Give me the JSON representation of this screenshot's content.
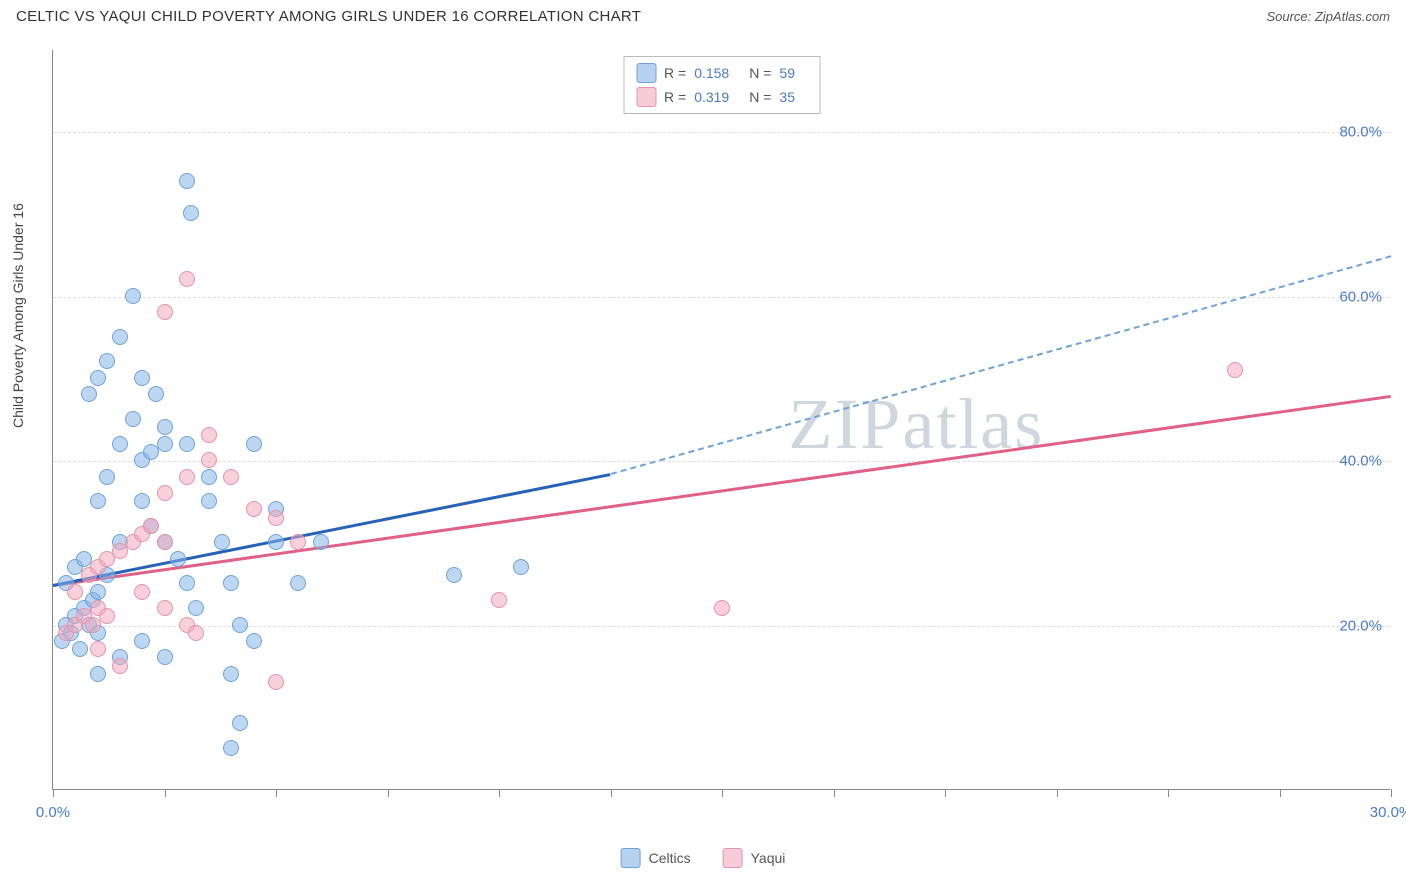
{
  "title": "CELTIC VS YAQUI CHILD POVERTY AMONG GIRLS UNDER 16 CORRELATION CHART",
  "source_label": "Source: ZipAtlas.com",
  "y_axis_title": "Child Poverty Among Girls Under 16",
  "watermark": "ZIPatlas",
  "chart": {
    "type": "scatter",
    "xlim": [
      0,
      30
    ],
    "ylim": [
      0,
      90
    ],
    "x_ticks": [
      0,
      2.5,
      5,
      7.5,
      10,
      12.5,
      15,
      17.5,
      20,
      22.5,
      25,
      27.5,
      30
    ],
    "x_tick_labels": {
      "0": "0.0%",
      "30": "30.0%"
    },
    "y_gridlines": [
      20,
      40,
      60,
      80
    ],
    "y_tick_labels": {
      "20": "20.0%",
      "40": "40.0%",
      "60": "60.0%",
      "80": "80.0%"
    },
    "background_color": "#ffffff",
    "grid_color": "#dddddd",
    "axis_color": "#888888",
    "tick_label_color": "#4a7bc8",
    "title_color": "#333333",
    "point_radius": 8,
    "series": [
      {
        "name": "Celtics",
        "color_fill": "rgba(135,180,230,0.55)",
        "color_stroke": "#6fa3d9",
        "R": 0.158,
        "N": 59,
        "trend": {
          "x1": 0,
          "y1": 25,
          "x2_solid": 12.5,
          "y2_solid": 38.5,
          "x2_dash": 30,
          "y2_dash": 65
        },
        "trend_color_solid": "#2862b8",
        "trend_color_dash": "#6fa3d9",
        "points": [
          [
            0.2,
            18
          ],
          [
            0.3,
            20
          ],
          [
            0.4,
            19
          ],
          [
            0.5,
            21
          ],
          [
            0.6,
            17
          ],
          [
            0.7,
            22
          ],
          [
            0.8,
            20
          ],
          [
            0.9,
            23
          ],
          [
            1.0,
            19
          ],
          [
            0.3,
            25
          ],
          [
            0.5,
            27
          ],
          [
            0.7,
            28
          ],
          [
            1.0,
            24
          ],
          [
            1.2,
            26
          ],
          [
            1.5,
            30
          ],
          [
            1.0,
            35
          ],
          [
            1.2,
            38
          ],
          [
            1.5,
            42
          ],
          [
            1.8,
            45
          ],
          [
            2.0,
            40
          ],
          [
            0.8,
            48
          ],
          [
            1.0,
            50
          ],
          [
            1.2,
            52
          ],
          [
            2.2,
            41
          ],
          [
            2.5,
            42
          ],
          [
            1.5,
            55
          ],
          [
            1.8,
            60
          ],
          [
            2.0,
            35
          ],
          [
            2.2,
            32
          ],
          [
            2.5,
            30
          ],
          [
            2.8,
            28
          ],
          [
            3.0,
            25
          ],
          [
            3.2,
            22
          ],
          [
            2.0,
            50
          ],
          [
            2.3,
            48
          ],
          [
            2.5,
            44
          ],
          [
            3.0,
            42
          ],
          [
            3.5,
            38
          ],
          [
            3.0,
            74
          ],
          [
            3.1,
            70
          ],
          [
            3.5,
            35
          ],
          [
            3.8,
            30
          ],
          [
            4.0,
            25
          ],
          [
            4.2,
            20
          ],
          [
            4.5,
            18
          ],
          [
            4.0,
            14
          ],
          [
            4.5,
            42
          ],
          [
            5.0,
            30
          ],
          [
            5.5,
            25
          ],
          [
            4.0,
            5
          ],
          [
            4.2,
            8
          ],
          [
            5.0,
            34
          ],
          [
            6.0,
            30
          ],
          [
            9.0,
            26
          ],
          [
            10.5,
            27
          ],
          [
            1.0,
            14
          ],
          [
            1.5,
            16
          ],
          [
            2.0,
            18
          ],
          [
            2.5,
            16
          ]
        ]
      },
      {
        "name": "Yaqui",
        "color_fill": "rgba(240,170,190,0.55)",
        "color_stroke": "#e593ad",
        "R": 0.319,
        "N": 35,
        "trend": {
          "x1": 0,
          "y1": 25,
          "x2_solid": 30,
          "y2_solid": 48
        },
        "trend_color_solid": "#e06088",
        "points": [
          [
            0.3,
            19
          ],
          [
            0.5,
            20
          ],
          [
            0.7,
            21
          ],
          [
            0.9,
            20
          ],
          [
            1.0,
            22
          ],
          [
            1.2,
            21
          ],
          [
            0.5,
            24
          ],
          [
            0.8,
            26
          ],
          [
            1.0,
            27
          ],
          [
            1.2,
            28
          ],
          [
            1.5,
            29
          ],
          [
            1.8,
            30
          ],
          [
            2.0,
            31
          ],
          [
            2.2,
            32
          ],
          [
            2.5,
            30
          ],
          [
            2.0,
            24
          ],
          [
            2.5,
            22
          ],
          [
            3.0,
            20
          ],
          [
            3.2,
            19
          ],
          [
            2.5,
            36
          ],
          [
            3.0,
            38
          ],
          [
            3.5,
            40
          ],
          [
            4.0,
            38
          ],
          [
            4.5,
            34
          ],
          [
            5.0,
            33
          ],
          [
            5.5,
            30
          ],
          [
            5.0,
            13
          ],
          [
            3.0,
            62
          ],
          [
            2.5,
            58
          ],
          [
            3.5,
            43
          ],
          [
            10.0,
            23
          ],
          [
            15.0,
            22
          ],
          [
            26.5,
            51
          ],
          [
            1.5,
            15
          ],
          [
            1.0,
            17
          ]
        ]
      }
    ]
  },
  "legend_bottom": [
    {
      "swatch": "blue",
      "label": "Celtics"
    },
    {
      "swatch": "pink",
      "label": "Yaqui"
    }
  ],
  "legend_top_rows": [
    {
      "swatch": "blue",
      "r_label": "R =",
      "r_val": "0.158",
      "n_label": "N =",
      "n_val": "59"
    },
    {
      "swatch": "pink",
      "r_label": "R =",
      "r_val": "0.319",
      "n_label": "N =",
      "n_val": "35"
    }
  ]
}
